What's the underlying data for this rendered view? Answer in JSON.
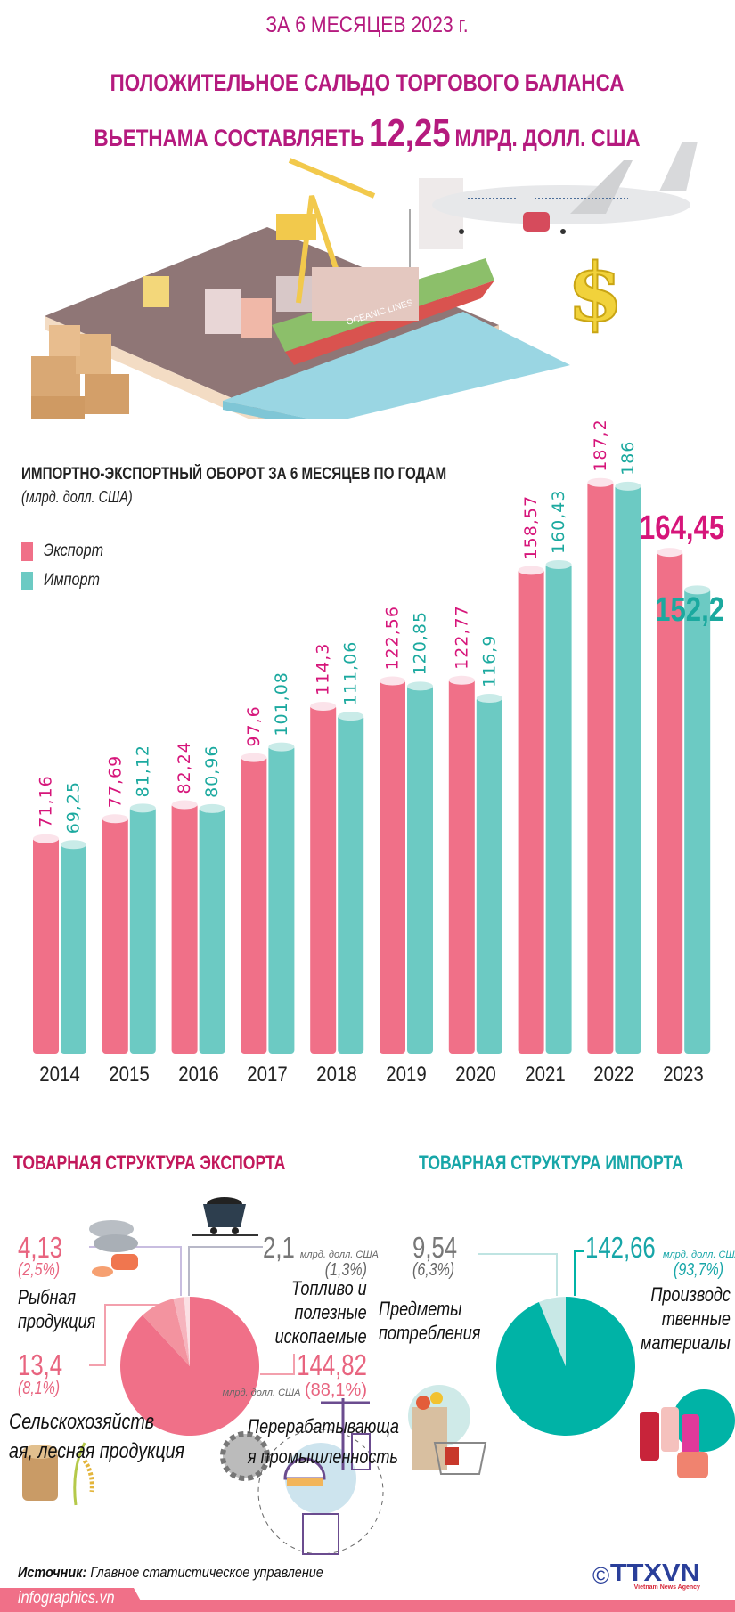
{
  "header": {
    "period": "ЗА 6 МЕСЯЦЕВ 2023 г.",
    "headline_line1": "ПОЛОЖИТЕЛЬНОЕ САЛЬДО ТОРГОВОГО БАЛАНСА",
    "headline_line2_prefix": "ВЬЕТНАМА СОСТАВЛЯЕТЬ",
    "headline_value": "12,25",
    "headline_line2_suffix": "МЛРД. ДОЛЛ. США"
  },
  "illustration": {
    "ship_text": "OCEANIC LINES"
  },
  "colors": {
    "title": "#b51a7e",
    "export": "#f07088",
    "import": "#6ccac3",
    "export_label": "#d6157a",
    "import_label": "#1ba99f",
    "export_heading": "#c2185b",
    "import_heading": "#17a6a8"
  },
  "chart_data": {
    "type": "bar",
    "title": "ИМПОРТНО-ЭКСПОРТНЫЙ ОБОРОТ ЗА 6 МЕСЯЦЕВ ПО ГОДАМ",
    "subtitle": "(млрд. долл. США)",
    "categories": [
      "2014",
      "2015",
      "2016",
      "2017",
      "2018",
      "2019",
      "2020",
      "2021",
      "2022",
      "2023"
    ],
    "series": [
      {
        "name": "Экспорт",
        "values": [
          71.16,
          77.69,
          82.24,
          97.6,
          114.3,
          122.56,
          122.77,
          158.57,
          187.2,
          164.45
        ],
        "labels": [
          "71,16",
          "77,69",
          "82,24",
          "97,6",
          "114,3",
          "122,56",
          "122,77",
          "158,57",
          "187,2",
          "164,45"
        ]
      },
      {
        "name": "Импорт",
        "values": [
          69.25,
          81.12,
          80.96,
          101.08,
          111.06,
          120.85,
          116.9,
          160.43,
          186,
          152.2
        ],
        "labels": [
          "69,25",
          "81,12",
          "80,96",
          "101,08",
          "111,06",
          "120,85",
          "116,9",
          "160,43",
          "186",
          "152,2"
        ]
      }
    ],
    "ylim": [
      0,
      200
    ],
    "grid": false,
    "legend": "top-left"
  },
  "export_structure": {
    "title": "ТОВАРНАЯ СТРУКТУРА ЭКСПОРТА",
    "slices": [
      {
        "value": "144,82",
        "unit": "млрд. долл. США",
        "pct": "(88,1%)",
        "share": 88.1,
        "label": [
          "Перерабатывающа",
          "я промышленность"
        ],
        "color": "#f07088"
      },
      {
        "value": "13,4",
        "pct": "(8,1%)",
        "share": 8.1,
        "label": [
          "Сельскохозяйств",
          "ая, лесная продукция"
        ],
        "color": "#f3939f"
      },
      {
        "value": "4,13",
        "pct": "(2,5%)",
        "share": 2.5,
        "label": [
          "Рыбная",
          "продукция"
        ],
        "color": "#f6b4bd"
      },
      {
        "value": "2,1",
        "unit": "млрд. долл. США",
        "pct": "(1,3%)",
        "share": 1.3,
        "label": [
          "Топливо и",
          "полезные",
          "ископаемые"
        ],
        "color": "#fbe0e4"
      }
    ]
  },
  "import_structure": {
    "title": "ТОВАРНАЯ СТРУКТУРА ИМПОРТА",
    "slices": [
      {
        "value": "142,66",
        "unit": "млрд. долл. США",
        "pct": "(93,7%)",
        "share": 93.7,
        "label": [
          "Производс",
          "твенные",
          "материалы"
        ],
        "color": "#00b3a6"
      },
      {
        "value": "9,54",
        "pct": "(6,3%)",
        "share": 6.3,
        "label": [
          "Предметы",
          "потребления"
        ],
        "color": "#c8e8e6"
      }
    ]
  },
  "footer": {
    "source_label": "Источник:",
    "source_text": "Главное статистическое управление",
    "site": "infographics.vn",
    "copyright": "©",
    "logo": "TTXVN",
    "logo_sub": "Vietnam News Agency"
  }
}
